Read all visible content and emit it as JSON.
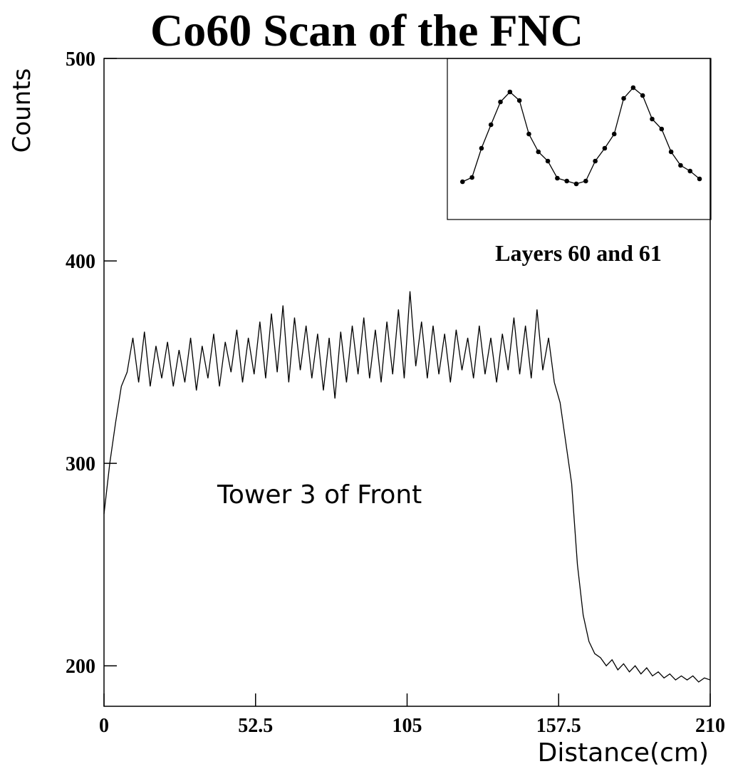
{
  "chart_data": [
    {
      "type": "line",
      "title": "Co60 Scan of the FNC",
      "y_label": "Counts",
      "x_label": "Distance(cm)",
      "annotation": "Tower 3 of Front",
      "color": "#000000",
      "x": [
        0,
        2,
        4,
        6,
        8,
        10,
        12,
        14,
        16,
        18,
        20,
        22,
        24,
        26,
        28,
        30,
        32,
        34,
        36,
        38,
        40,
        42,
        44,
        46,
        48,
        50,
        52,
        54,
        56,
        58,
        60,
        62,
        64,
        66,
        68,
        70,
        72,
        74,
        76,
        78,
        80,
        82,
        84,
        86,
        88,
        90,
        92,
        94,
        96,
        98,
        100,
        102,
        104,
        106,
        108,
        110,
        112,
        114,
        116,
        118,
        120,
        122,
        124,
        126,
        128,
        130,
        132,
        134,
        136,
        138,
        140,
        142,
        144,
        146,
        148,
        150,
        152,
        154,
        156,
        158,
        160,
        162,
        164,
        166,
        168,
        170,
        172,
        174,
        176,
        178,
        180,
        182,
        184,
        186,
        188,
        190,
        192,
        194,
        196,
        198,
        200,
        202,
        204,
        206,
        208,
        210
      ],
      "values": [
        275,
        300,
        320,
        338,
        345,
        362,
        340,
        365,
        338,
        358,
        342,
        360,
        338,
        356,
        340,
        362,
        336,
        358,
        342,
        364,
        338,
        360,
        345,
        366,
        340,
        362,
        344,
        370,
        342,
        374,
        345,
        378,
        340,
        372,
        346,
        368,
        342,
        364,
        336,
        362,
        332,
        365,
        340,
        368,
        344,
        372,
        342,
        366,
        340,
        370,
        344,
        376,
        342,
        385,
        348,
        370,
        342,
        368,
        344,
        364,
        340,
        366,
        346,
        362,
        342,
        368,
        344,
        362,
        340,
        364,
        346,
        372,
        344,
        368,
        342,
        376,
        346,
        362,
        340,
        330,
        310,
        290,
        250,
        225,
        212,
        206,
        204,
        200,
        203,
        198,
        201,
        197,
        200,
        196,
        199,
        195,
        197,
        194,
        196,
        193,
        195,
        193,
        195,
        192,
        194,
        193
      ],
      "xlim": [
        0,
        210
      ],
      "ylim": [
        180,
        500
      ],
      "xticks": [
        0,
        52.5,
        105,
        157.5,
        210
      ],
      "yticks": [
        200,
        300,
        400,
        500
      ]
    },
    {
      "type": "line-markers",
      "title": "Layers 60 and 61",
      "color": "#000000",
      "x": [
        1,
        2,
        3,
        4,
        5,
        6,
        7,
        8,
        9,
        10,
        11,
        12,
        13,
        14,
        15,
        16,
        17,
        18,
        19,
        20,
        21,
        22,
        23,
        24,
        25,
        26
      ],
      "values": [
        53,
        59,
        100,
        133,
        165,
        179,
        167,
        120,
        95,
        82,
        58,
        54,
        50,
        54,
        82,
        100,
        120,
        170,
        185,
        174,
        141,
        127,
        95,
        76,
        68,
        57
      ],
      "xlim": [
        -0.6,
        27.2
      ],
      "ylim": [
        0,
        226
      ]
    }
  ]
}
